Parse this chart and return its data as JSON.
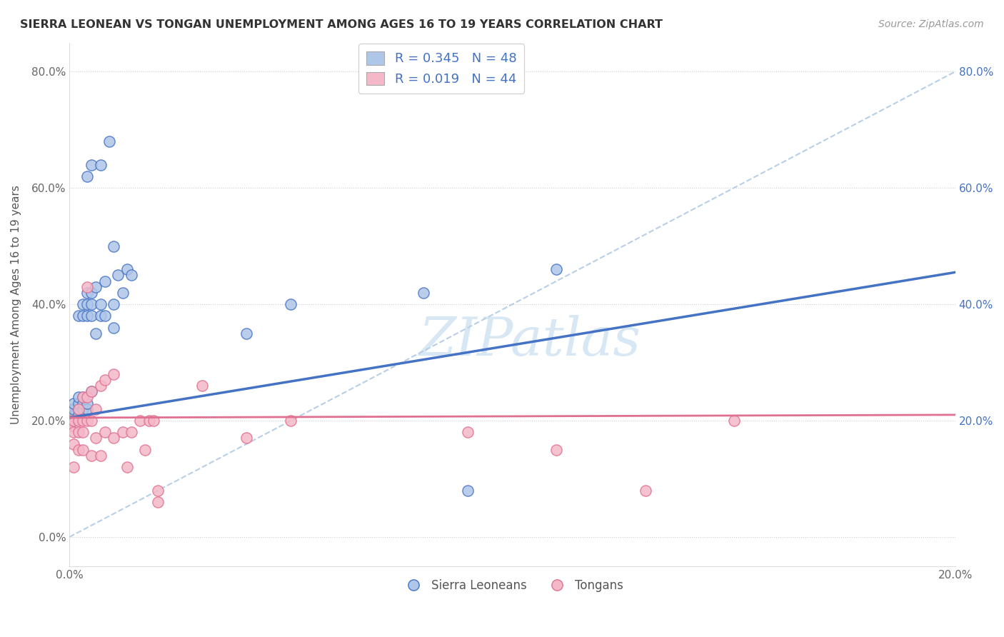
{
  "title": "SIERRA LEONEAN VS TONGAN UNEMPLOYMENT AMONG AGES 16 TO 19 YEARS CORRELATION CHART",
  "source": "Source: ZipAtlas.com",
  "ylabel": "Unemployment Among Ages 16 to 19 years",
  "watermark": "ZIPatlas",
  "legend_sl": "Sierra Leoneans",
  "legend_to": "Tongans",
  "R_sl": 0.345,
  "N_sl": 48,
  "R_to": 0.019,
  "N_to": 44,
  "color_sl": "#aec6e8",
  "color_to": "#f4b8c8",
  "line_sl": "#4472c4",
  "line_to": "#e07090",
  "line_ref_color": "#b8cfe8",
  "text_color": "#4472c4",
  "xlim": [
    0.0,
    0.2
  ],
  "ylim": [
    -0.05,
    0.85
  ],
  "yticks": [
    0.0,
    0.2,
    0.4,
    0.6,
    0.8
  ],
  "ytick_labels": [
    "0.0%",
    "20.0%",
    "40.0%",
    "60.0%",
    "80.0%"
  ],
  "xtick_labels": [
    "0.0%",
    "20.0%"
  ],
  "xtick_vals": [
    0.0,
    0.2
  ],
  "right_ytick_labels": [
    "20.0%",
    "40.0%",
    "60.0%",
    "80.0%"
  ],
  "right_ytick_vals": [
    0.2,
    0.4,
    0.6,
    0.8
  ],
  "sl_x": [
    0.0,
    0.0,
    0.0,
    0.001,
    0.001,
    0.001,
    0.001,
    0.002,
    0.002,
    0.002,
    0.002,
    0.002,
    0.003,
    0.003,
    0.003,
    0.003,
    0.003,
    0.004,
    0.004,
    0.004,
    0.004,
    0.004,
    0.004,
    0.005,
    0.005,
    0.005,
    0.005,
    0.005,
    0.006,
    0.006,
    0.007,
    0.007,
    0.007,
    0.008,
    0.008,
    0.009,
    0.01,
    0.01,
    0.01,
    0.011,
    0.012,
    0.013,
    0.014,
    0.04,
    0.05,
    0.08,
    0.09,
    0.11
  ],
  "sl_y": [
    0.2,
    0.21,
    0.22,
    0.2,
    0.21,
    0.22,
    0.23,
    0.21,
    0.22,
    0.23,
    0.24,
    0.38,
    0.22,
    0.23,
    0.24,
    0.38,
    0.4,
    0.22,
    0.23,
    0.38,
    0.4,
    0.42,
    0.62,
    0.25,
    0.38,
    0.4,
    0.42,
    0.64,
    0.35,
    0.43,
    0.38,
    0.4,
    0.64,
    0.38,
    0.44,
    0.68,
    0.36,
    0.4,
    0.5,
    0.45,
    0.42,
    0.46,
    0.45,
    0.35,
    0.4,
    0.42,
    0.08,
    0.46
  ],
  "to_x": [
    0.0,
    0.0,
    0.001,
    0.001,
    0.001,
    0.001,
    0.002,
    0.002,
    0.002,
    0.002,
    0.003,
    0.003,
    0.003,
    0.003,
    0.004,
    0.004,
    0.004,
    0.005,
    0.005,
    0.005,
    0.006,
    0.006,
    0.007,
    0.007,
    0.008,
    0.008,
    0.01,
    0.01,
    0.012,
    0.013,
    0.014,
    0.016,
    0.017,
    0.018,
    0.019,
    0.02,
    0.02,
    0.03,
    0.04,
    0.05,
    0.09,
    0.11,
    0.13,
    0.15
  ],
  "to_y": [
    0.2,
    0.19,
    0.12,
    0.16,
    0.18,
    0.2,
    0.15,
    0.18,
    0.2,
    0.22,
    0.15,
    0.18,
    0.2,
    0.24,
    0.2,
    0.24,
    0.43,
    0.14,
    0.2,
    0.25,
    0.17,
    0.22,
    0.14,
    0.26,
    0.18,
    0.27,
    0.17,
    0.28,
    0.18,
    0.12,
    0.18,
    0.2,
    0.15,
    0.2,
    0.2,
    0.06,
    0.08,
    0.26,
    0.17,
    0.2,
    0.18,
    0.15,
    0.08,
    0.2
  ],
  "sl_trend_x": [
    0.0,
    0.2
  ],
  "sl_trend_y": [
    0.205,
    0.455
  ],
  "to_trend_x": [
    0.0,
    0.2
  ],
  "to_trend_y": [
    0.205,
    0.21
  ],
  "ref_line_x": [
    0.0,
    0.2
  ],
  "ref_line_y": [
    0.0,
    0.8
  ]
}
